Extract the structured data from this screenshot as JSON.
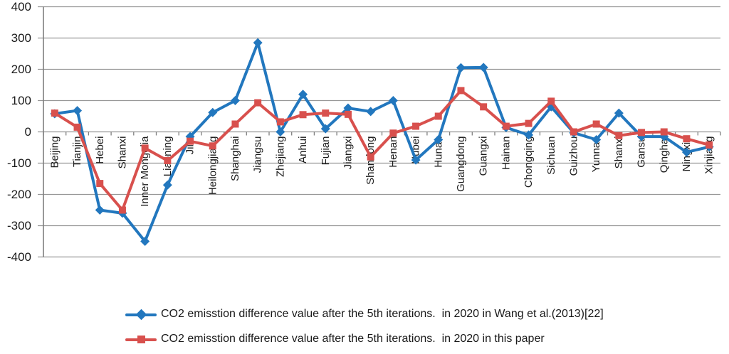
{
  "chart_data": {
    "type": "line",
    "categories": [
      "Beijing",
      "Tianjin",
      "Hebei",
      "Shanxi",
      "Inner Mongolia",
      "Liaoning",
      "Jilin",
      "Heilongjiang",
      "Shanghai",
      "Jiangsu",
      "Zhejiang",
      "Anhui",
      "Fujian",
      "Jiangxi",
      "Shandong",
      "Henan",
      "Hubei",
      "Hunan",
      "Guangdong",
      "Guangxi",
      "Hainan",
      "Chongqing",
      "Sichuan",
      "Guizhou",
      "Yunnan",
      "Shanxi",
      "Gansu",
      "Qinghai",
      "Ningxia",
      "Xinjiang"
    ],
    "series": [
      {
        "name": "CO2 emisstion difference value after the 5th iterations.  in 2020 in Wang et al.(2013)[22]",
        "color": "#2277BE",
        "marker": "diamond",
        "values": [
          58,
          68,
          -250,
          -260,
          -350,
          -170,
          -15,
          62,
          100,
          285,
          0,
          120,
          10,
          76,
          65,
          100,
          -90,
          -25,
          205,
          206,
          14,
          -10,
          80,
          -3,
          -25,
          60,
          -15,
          -15,
          -65,
          -48
        ]
      },
      {
        "name": "CO2 emisstion difference value after the 5th iterations.  in 2020 in this paper",
        "color": "#D8504D",
        "marker": "square",
        "values": [
          60,
          15,
          -165,
          -250,
          -52,
          -92,
          -30,
          -45,
          25,
          93,
          32,
          55,
          60,
          56,
          -80,
          -4,
          18,
          50,
          132,
          80,
          18,
          27,
          98,
          0,
          25,
          -12,
          -2,
          0,
          -22,
          -42
        ]
      }
    ],
    "ylim": [
      -400,
      400
    ],
    "yticks": [
      400,
      300,
      200,
      100,
      0,
      -100,
      -200,
      -300,
      -400
    ],
    "grid": true,
    "legend_position": "bottom",
    "gridline_color": "#969696",
    "axis_color": "#7f7f7f",
    "text_color": "#1a1a1a"
  }
}
